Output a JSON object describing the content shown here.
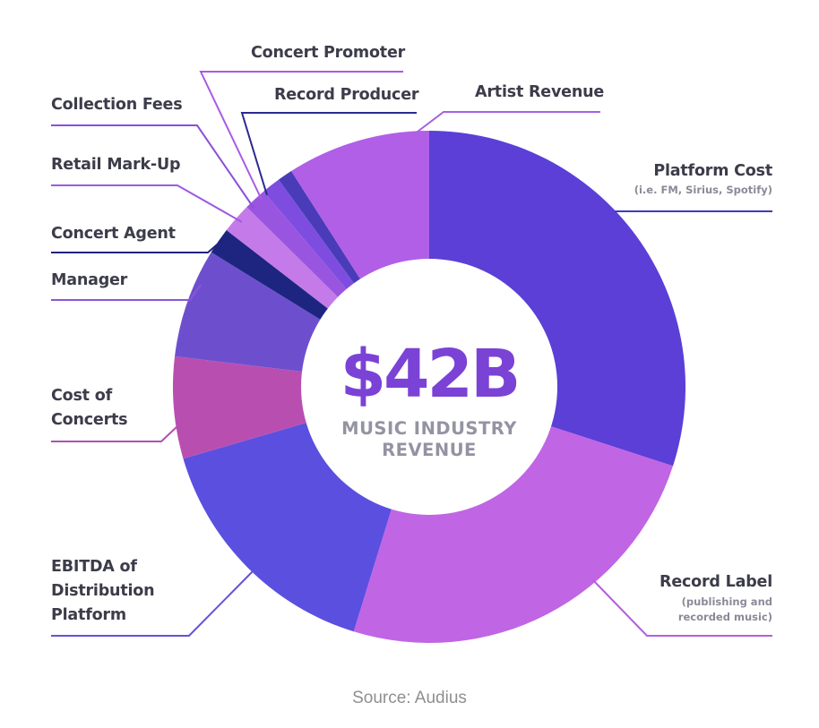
{
  "chart_data": {
    "type": "pie",
    "style": "donut",
    "total_label": "$42B",
    "center_subtitle": [
      "MUSIC INDUSTRY",
      "REVENUE"
    ],
    "source": "Source: Audius",
    "categories": [
      "Platform Cost",
      "Record Label",
      "EBITDA of Distribution Platform",
      "Cost of Concerts",
      "Manager",
      "Concert Agent",
      "Retail Mark-Up",
      "Collection Fees",
      "Concert Promoter",
      "Record Producer",
      "Artist Revenue"
    ],
    "values": [
      12.6,
      10.4,
      6.6,
      2.7,
      2.9,
      0.7,
      0.8,
      0.6,
      0.5,
      0.4,
      3.8
    ],
    "unit": "$B (estimated share of $42B)",
    "colors": [
      "#5b3fd6",
      "#c065e4",
      "#5b4fe0",
      "#b84fb0",
      "#6d4fce",
      "#1d2580",
      "#c47ae8",
      "#9a55e0",
      "#7e4de0",
      "#4a3cb8",
      "#b05fe6"
    ],
    "labels": [
      {
        "lines": [
          "Platform Cost"
        ],
        "sub": [
          "(i.e. FM, Sirius, Spotify)"
        ],
        "line_color": "#3c3cc0"
      },
      {
        "lines": [
          "Record Label"
        ],
        "sub": [
          "(publishing and",
          "recorded music)"
        ],
        "line_color": "#b45fdc"
      },
      {
        "lines": [
          "EBITDA of",
          "Distribution",
          "Platform"
        ],
        "sub": [],
        "line_color": "#6a4fd8"
      },
      {
        "lines": [
          "Cost of",
          "Concerts"
        ],
        "sub": [],
        "line_color": "#b04fb0"
      },
      {
        "lines": [
          "Manager"
        ],
        "sub": [],
        "line_color": "#8a55d8"
      },
      {
        "lines": [
          "Concert Agent"
        ],
        "sub": [],
        "line_color": "#1d2580"
      },
      {
        "lines": [
          "Retail Mark-Up"
        ],
        "sub": [],
        "line_color": "#a058e0"
      },
      {
        "lines": [
          "Collection Fees"
        ],
        "sub": [],
        "line_color": "#8a4fd8"
      },
      {
        "lines": [
          "Concert Promoter"
        ],
        "sub": [],
        "line_color": "#a85ae6"
      },
      {
        "lines": [
          "Record Producer"
        ],
        "sub": [],
        "line_color": "#2a2a90"
      },
      {
        "lines": [
          "Artist Revenue"
        ],
        "sub": [],
        "line_color": "#a860e0"
      }
    ]
  }
}
